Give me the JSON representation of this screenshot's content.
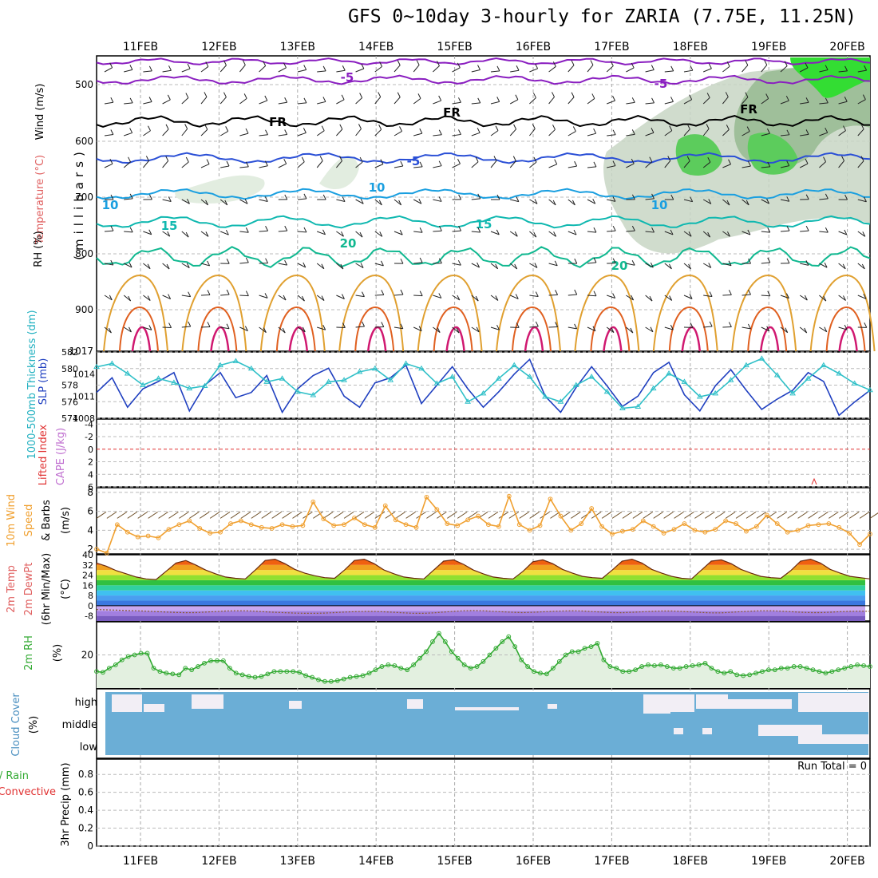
{
  "header": {
    "title": "GFS 0~10day 3-hourly for ZARIA (7.75E, 11.25N)"
  },
  "time_axis": {
    "dates": [
      "11FEB",
      "12FEB",
      "13FEB",
      "14FEB",
      "15FEB",
      "16FEB",
      "17FEB",
      "18FEB",
      "19FEB",
      "20FEB"
    ]
  },
  "colors": {
    "rh_green": "#33dd33",
    "minus5": "#8a1ec0",
    "freezing": "#000000",
    "five": "#2a4fd6",
    "ten": "#1a9fe0",
    "fifteen": "#10b8b0",
    "twenty": "#10b890",
    "warm": "#e0a030",
    "hot": "#e06020",
    "slp": "#2040c0",
    "thickness": "#30c0c8",
    "wind10": "#f0a030",
    "rh2m": "#33aa33",
    "cloud": "#6baed6",
    "precip_run": "#000000"
  },
  "panels": {
    "upper_air": {
      "left_labels": {
        "wind": "Wind (m/s)",
        "temp": "Temperature (°C)",
        "rh": "RH (%)",
        "pressure": "(millibars)"
      },
      "ticks": [
        "500",
        "600",
        "700",
        "800",
        "900",
        "1017"
      ],
      "contour_labels": [
        "-5",
        "-5",
        "FR",
        "FR",
        "FR",
        "-5",
        "10",
        "10",
        "10",
        "15",
        "15",
        "20",
        "20"
      ]
    },
    "slp": {
      "left_labels": {
        "thickness": "1000-500mb Thickness (dm)",
        "slp": "SLP (mb)"
      },
      "left_ticks": [
        "582",
        "580",
        "578",
        "576",
        "574"
      ],
      "right_ticks": [
        "1014",
        "1011",
        "1008"
      ]
    },
    "li": {
      "left_labels": {
        "li": "Lifted Index",
        "cape": "CAPE (J/kg)"
      },
      "ticks": [
        "-4",
        "-2",
        "0",
        "2",
        "4",
        "6"
      ]
    },
    "wind10": {
      "left_labels": {
        "line1": "10m Wind",
        "line2": "Speed",
        "line3": "& Barbs",
        "unit": "(m/s)"
      },
      "ticks": [
        "8",
        "6",
        "4",
        "2"
      ]
    },
    "temp2m": {
      "left_labels": {
        "line1": "2m Temp",
        "line2": "2m DewPt",
        "line3": "(6hr Min/Max)",
        "unit": "(°C)"
      },
      "ticks": [
        "40",
        "32",
        "24",
        "16",
        "8",
        "0",
        "-8"
      ]
    },
    "rh2m": {
      "left_labels": {
        "line1": "2m RH",
        "unit": "(%)"
      },
      "ticks": [
        "20"
      ]
    },
    "cloud": {
      "left_labels": {
        "line1": "Cloud Cover",
        "unit": "(%)"
      },
      "levels": [
        "high",
        "middle",
        "low"
      ]
    },
    "precip": {
      "left_labels": {
        "total": "Total / Rain",
        "conv": "Convective",
        "line": "3hr Precip (mm)"
      },
      "ticks": [
        "0.8",
        "0.6",
        "0.4",
        "0.2",
        "0"
      ],
      "run_total": "Run Total = 0"
    }
  },
  "chart_data": [
    {
      "type": "line",
      "title": "SLP (mb)",
      "x_unit": "forecast step (3-hourly, 11FEB-20FEB)",
      "series": [
        {
          "name": "SLP (mb)",
          "values": [
            1011.5,
            1013.5,
            1009.5,
            1012.0,
            1013.0,
            1014.2,
            1009.0,
            1012.5,
            1014.2,
            1010.8,
            1011.5,
            1013.8,
            1008.8,
            1012.0,
            1013.8,
            1014.8,
            1011.0,
            1009.5,
            1012.8,
            1013.5,
            1015.2,
            1010.0,
            1012.5,
            1015.0,
            1012.0,
            1009.5,
            1011.6,
            1014.0,
            1016.0,
            1011.0,
            1008.8,
            1012.2,
            1015.0,
            1012.4,
            1009.6,
            1011.0,
            1014.2,
            1015.6,
            1011.2,
            1009.0,
            1012.4,
            1014.6,
            1011.8,
            1009.2,
            1010.6,
            1011.8,
            1014.2,
            1013.0,
            1008.4,
            1010.2,
            1011.8
          ]
        },
        {
          "name": "1000-500mb Thickness (dm)",
          "values": [
            580.2,
            580.6,
            579.4,
            578.0,
            578.8,
            578.3,
            577.6,
            577.9,
            580.4,
            580.9,
            580.0,
            578.4,
            578.8,
            577.2,
            576.8,
            578.4,
            578.6,
            579.6,
            580.0,
            578.6,
            580.6,
            580.0,
            578.2,
            579.0,
            576.0,
            577.0,
            578.8,
            580.4,
            579.0,
            576.6,
            576.0,
            578.0,
            579.0,
            577.2,
            575.2,
            575.4,
            577.6,
            579.4,
            578.4,
            576.6,
            577.0,
            578.6,
            580.4,
            581.2,
            579.2,
            577.0,
            578.8,
            580.4,
            579.4,
            578.2,
            577.4
          ]
        }
      ],
      "y_right": [
        1008,
        1017
      ],
      "y_left": [
        574,
        582
      ]
    },
    {
      "type": "line",
      "title": "10m Wind Speed (m/s)",
      "series": [
        {
          "name": "10m wind speed",
          "values": [
            2.0,
            1.6,
            4.6,
            3.8,
            3.3,
            3.4,
            3.2,
            4.1,
            4.6,
            5.0,
            4.2,
            3.7,
            3.8,
            4.7,
            5.0,
            4.6,
            4.3,
            4.2,
            4.6,
            4.4,
            4.5,
            7.0,
            5.2,
            4.5,
            4.6,
            5.3,
            4.6,
            4.3,
            6.6,
            5.1,
            4.6,
            4.3,
            7.5,
            6.2,
            4.7,
            4.5,
            5.1,
            5.5,
            4.6,
            4.4,
            7.6,
            4.6,
            4.0,
            4.5,
            7.3,
            5.5,
            4.0,
            4.7,
            6.3,
            4.4,
            3.6,
            3.9,
            4.1,
            5.0,
            4.4,
            3.7,
            4.1,
            4.7,
            4.0,
            3.8,
            4.1,
            5.0,
            4.7,
            3.9,
            4.4,
            5.6,
            4.7,
            3.8,
            4.0,
            4.5,
            4.6,
            4.7,
            4.3,
            3.7,
            2.5,
            3.6
          ]
        }
      ],
      "ylim": [
        1.5,
        8.5
      ]
    },
    {
      "type": "area",
      "title": "2m Temp / 2m DewPt (°C)",
      "series": [
        {
          "name": "2m Temp",
          "values": [
            33.5,
            31.0,
            27.5,
            25.0,
            22.5,
            21.0,
            20.5,
            27.0,
            33.5,
            35.5,
            32.0,
            28.0,
            25.0,
            22.5,
            21.5,
            21.0,
            28.0,
            35.5,
            36.5,
            33.0,
            28.5,
            25.5,
            23.5,
            22.0,
            21.5,
            28.0,
            35.5,
            36.5,
            33.0,
            28.0,
            25.0,
            22.5,
            21.5,
            21.0,
            28.0,
            35.0,
            36.0,
            32.5,
            28.0,
            25.0,
            22.5,
            21.5,
            21.0,
            27.0,
            34.5,
            36.0,
            33.0,
            28.5,
            25.5,
            23.0,
            22.0,
            21.5,
            28.0,
            35.0,
            36.5,
            33.5,
            28.5,
            25.5,
            23.0,
            21.5,
            21.0,
            28.0,
            35.0,
            36.0,
            33.0,
            28.5,
            25.5,
            23.0,
            22.0,
            21.5,
            27.5,
            35.0,
            36.5,
            33.5,
            28.5,
            25.5,
            23.0,
            22.0,
            21.0
          ]
        },
        {
          "name": "2m DewPt",
          "values": [
            -3.0,
            -3.2,
            -3.5,
            -3.8,
            -4.0,
            -4.3,
            -4.6,
            -5.0,
            -5.3,
            -5.5,
            -5.4,
            -5.0,
            -4.6,
            -4.2,
            -4.0,
            -4.0,
            -4.3,
            -4.8,
            -5.2,
            -5.5,
            -5.8,
            -6.0,
            -6.0,
            -5.8,
            -5.4,
            -5.0,
            -4.7,
            -4.5,
            -4.5,
            -4.8,
            -5.2,
            -5.6,
            -6.0,
            -6.0,
            -5.6,
            -5.0,
            -4.4,
            -4.0,
            -3.8,
            -4.0,
            -4.4,
            -4.8,
            -5.2,
            -5.4,
            -5.2,
            -4.8,
            -4.4,
            -4.2,
            -4.0,
            -4.2,
            -4.6,
            -5.0,
            -5.4,
            -5.5,
            -5.2,
            -4.8,
            -4.4,
            -4.2,
            -4.2,
            -4.5,
            -4.9,
            -5.3,
            -5.6,
            -5.6,
            -5.2,
            -4.7,
            -4.3,
            -4.0,
            -4.0,
            -4.3,
            -4.7,
            -5.1,
            -5.4,
            -5.4,
            -5.1,
            -4.7,
            -4.4,
            -4.3,
            -4.4
          ]
        }
      ],
      "ylim": [
        -12,
        40
      ]
    },
    {
      "type": "area",
      "title": "2m RH (%)",
      "series": [
        {
          "name": "2m RH",
          "values": [
            10,
            9.5,
            12,
            14,
            17,
            19,
            20,
            21,
            21,
            12,
            10,
            9,
            8.5,
            8,
            12,
            11,
            13,
            15,
            16.5,
            16.5,
            16.5,
            12,
            9,
            8,
            7,
            6.5,
            7,
            8.5,
            10,
            10,
            10,
            10,
            9.5,
            7.5,
            6.5,
            5,
            4,
            4,
            4.5,
            5.5,
            6.5,
            7,
            7.5,
            9,
            11,
            13,
            14,
            13.5,
            12,
            11,
            14,
            18,
            22,
            28,
            33,
            28,
            22,
            18,
            14,
            12,
            13,
            16,
            20,
            24,
            28,
            31,
            25,
            17,
            13,
            10,
            9,
            8.5,
            12,
            16,
            20,
            22,
            22,
            24,
            25,
            27,
            17,
            13,
            12,
            10,
            10,
            11,
            13,
            14,
            13.5,
            14,
            13,
            12,
            12,
            13,
            13.5,
            14,
            15,
            12,
            10,
            9,
            10,
            8,
            7.5,
            8,
            9,
            10,
            11,
            11,
            12,
            12,
            13,
            13,
            12,
            11,
            10,
            9,
            10,
            11,
            12,
            13,
            14,
            13.5,
            13
          ]
        }
      ],
      "ylim": [
        0,
        40
      ]
    },
    {
      "type": "table",
      "title": "Cloud Cover (%)",
      "note": "low and middle fully covered (blue) through most of run; middle gaps on 18FEB-20FEB; high mostly covered with clear slots near 11FEB and 18FEB-20FEB",
      "levels": [
        "high",
        "middle",
        "low"
      ]
    },
    {
      "type": "bar",
      "title": "3hr Precip (mm)",
      "series": [
        {
          "name": "Total / Rain",
          "values": []
        },
        {
          "name": "Convective",
          "values": []
        }
      ],
      "ylim": [
        0,
        1.0
      ]
    }
  ]
}
